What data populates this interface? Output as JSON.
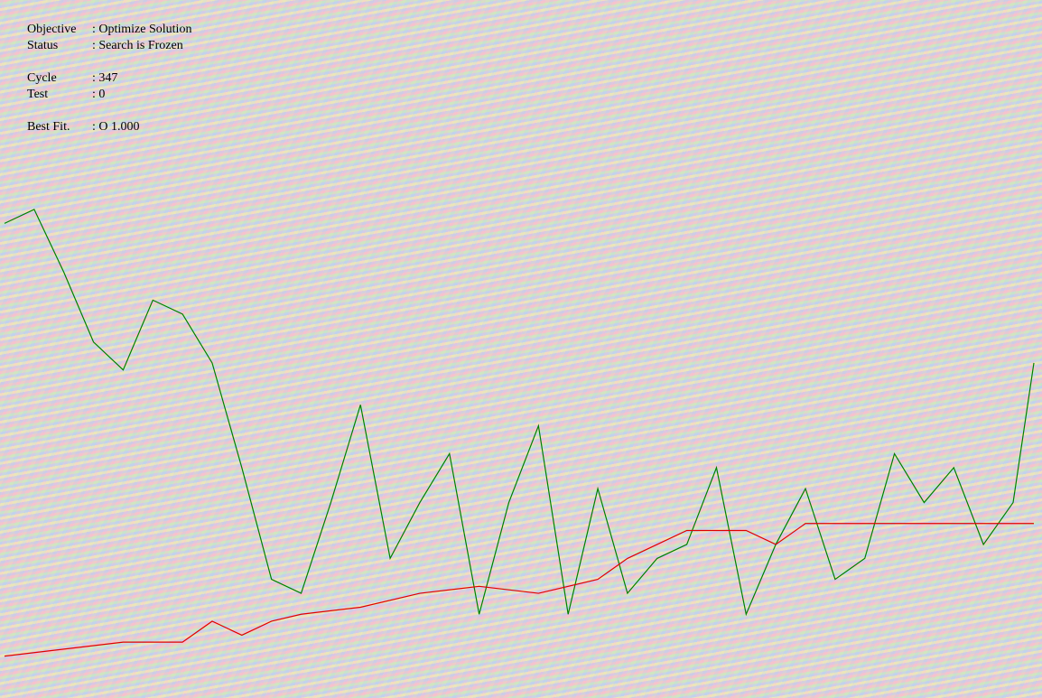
{
  "status": {
    "objective_label": "Objective",
    "objective_value": ": Optimize Solution",
    "status_label": "Status",
    "status_value": ": Search is Frozen",
    "cycle_label": "Cycle",
    "cycle_value": ": 347",
    "test_label": "Test",
    "test_value": ": 0",
    "best_label": "Best Fit.",
    "best_value": ": O  1.000"
  },
  "chart_data": {
    "type": "line",
    "xlim": [
      0,
      347
    ],
    "ylim": [
      0,
      1
    ],
    "series": [
      {
        "color": "#008000",
        "x": [
          0,
          10,
          20,
          30,
          40,
          50,
          60,
          70,
          80,
          90,
          100,
          110,
          120,
          130,
          140,
          150,
          160,
          170,
          180,
          190,
          200,
          210,
          220,
          230,
          240,
          250,
          260,
          270,
          280,
          290,
          300,
          310,
          320,
          330,
          340,
          347
        ],
        "values": [
          0.68,
          0.7,
          0.61,
          0.51,
          0.47,
          0.57,
          0.55,
          0.48,
          0.33,
          0.17,
          0.15,
          0.28,
          0.42,
          0.2,
          0.28,
          0.35,
          0.12,
          0.28,
          0.39,
          0.12,
          0.3,
          0.15,
          0.2,
          0.22,
          0.33,
          0.12,
          0.22,
          0.3,
          0.17,
          0.2,
          0.35,
          0.28,
          0.33,
          0.22,
          0.28,
          0.48
        ]
      },
      {
        "color": "#e00000",
        "x": [
          0,
          20,
          40,
          60,
          70,
          80,
          90,
          100,
          120,
          140,
          160,
          180,
          200,
          210,
          220,
          230,
          240,
          250,
          260,
          270,
          280,
          300,
          320,
          347
        ],
        "values": [
          0.06,
          0.07,
          0.08,
          0.08,
          0.11,
          0.09,
          0.11,
          0.12,
          0.13,
          0.15,
          0.16,
          0.15,
          0.17,
          0.2,
          0.22,
          0.24,
          0.24,
          0.24,
          0.22,
          0.25,
          0.25,
          0.25,
          0.25,
          0.25
        ]
      }
    ]
  }
}
